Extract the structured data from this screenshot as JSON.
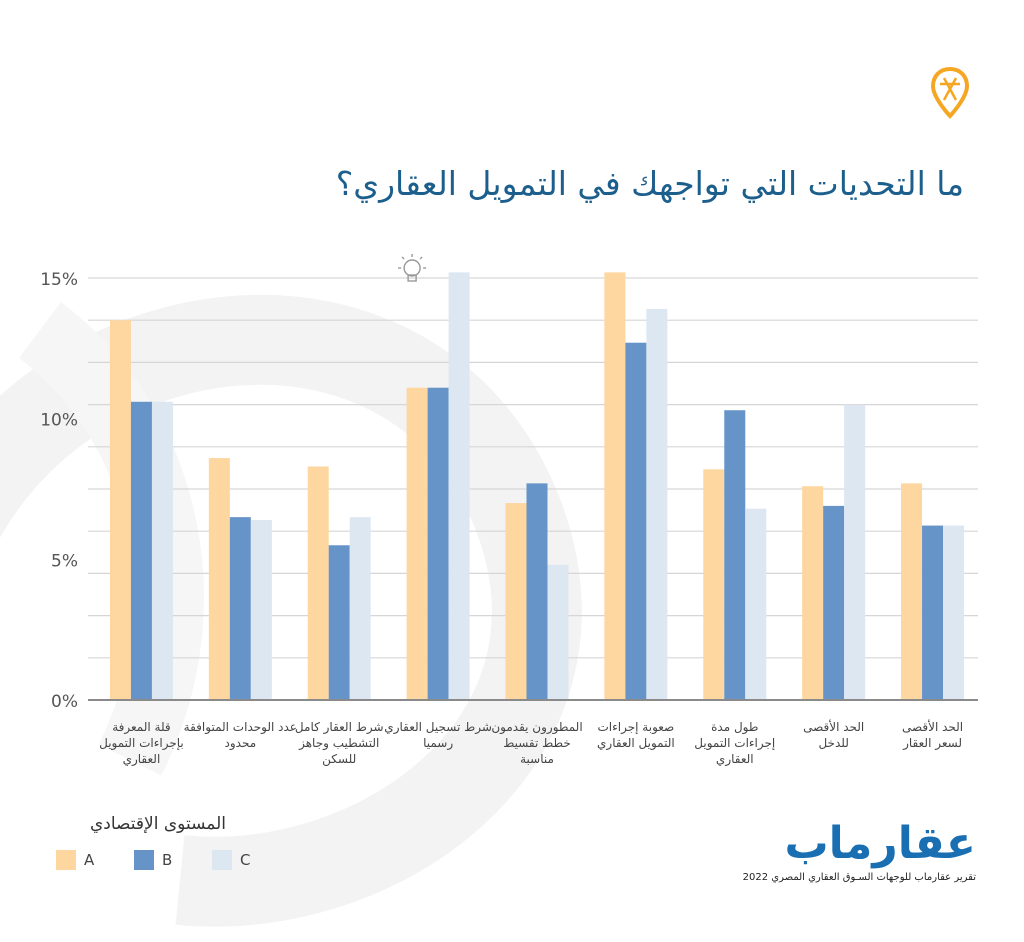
{
  "title": "ما التحديات التي تواجهك في التمويل العقاري؟",
  "legend": {
    "title": "المستوى الإقتصادي",
    "items": [
      {
        "label": "A",
        "color": "#fdd6a0"
      },
      {
        "label": "B",
        "color": "#6693c8"
      },
      {
        "label": "C",
        "color": "#dde7f2"
      }
    ]
  },
  "brand": {
    "logo": "عقارماب",
    "tagline": "تقرير عقارماب للوجهات السـوق العقاري المصري 2022"
  },
  "icons": {
    "pin": "map-pin-icon",
    "bulb": "lightbulb-icon"
  },
  "chart_data": {
    "type": "bar",
    "title": "ما التحديات التي تواجهك في التمويل العقاري؟",
    "ylim": [
      0,
      15
    ],
    "yticks": [
      {
        "value": 0,
        "label": "0%"
      },
      {
        "value": 5,
        "label": "5%"
      },
      {
        "value": 10,
        "label": "10%"
      },
      {
        "value": 15,
        "label": "15%"
      }
    ],
    "gridlines": [
      1.5,
      3,
      4.5,
      6,
      7.5,
      9,
      10.5,
      12,
      13.5,
      15
    ],
    "categories": [
      [
        "قلة المعرفة",
        "بإجراءات التمويل",
        "العقاري"
      ],
      [
        "عدد الوحدات المتوافقة",
        "محدود"
      ],
      [
        "شرط العقار كامل",
        "التشطيب وجاهز",
        "للسكن"
      ],
      [
        "شرط تسجيل العقاري",
        "رسميا"
      ],
      [
        "المطورون يقدمون",
        "خطط تقسيط",
        "مناسبة"
      ],
      [
        "صعوبة إجراءات",
        "التمويل العقاري"
      ],
      [
        "طول مدة",
        "إجراءات التمويل",
        "العقاري"
      ],
      [
        "الحد الأقصى",
        "للدخل"
      ],
      [
        "الحد الأقصى",
        "لسعر العقار"
      ]
    ],
    "series": [
      {
        "name": "A",
        "color": "#fdd6a0",
        "values": [
          13.5,
          8.6,
          8.3,
          11.1,
          7.0,
          15.2,
          8.2,
          7.6,
          7.7
        ]
      },
      {
        "name": "B",
        "color": "#6693c8",
        "values": [
          10.6,
          6.5,
          5.5,
          11.1,
          7.7,
          12.7,
          10.3,
          6.9,
          6.2
        ]
      },
      {
        "name": "C",
        "color": "#dde7f2",
        "values": [
          10.6,
          6.4,
          6.5,
          15.2,
          4.8,
          13.9,
          6.8,
          10.5,
          6.2
        ]
      }
    ],
    "grid": true,
    "legend_position": "bottom-left"
  }
}
